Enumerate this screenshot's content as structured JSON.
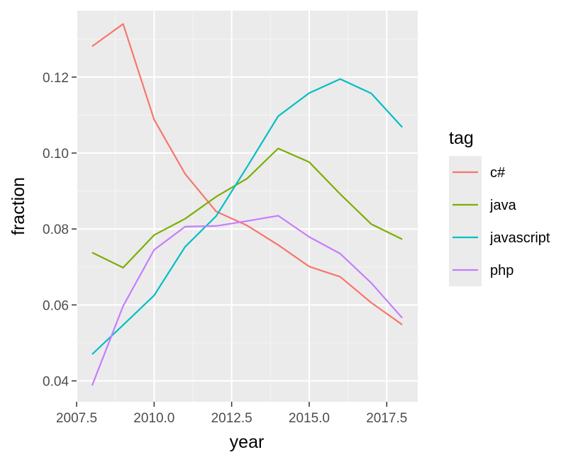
{
  "chart_data": {
    "type": "line",
    "title": "",
    "xlabel": "year",
    "ylabel": "fraction",
    "xlim": [
      2007.5,
      2018.5
    ],
    "ylim": [
      0.0345,
      0.1375
    ],
    "x_ticks": [
      2007.5,
      2010.0,
      2012.5,
      2015.0,
      2017.5
    ],
    "x_tick_labels": [
      "2007.5",
      "2010.0",
      "2012.5",
      "2015.0",
      "2017.5"
    ],
    "y_ticks": [
      0.04,
      0.06,
      0.08,
      0.1,
      0.12
    ],
    "y_tick_labels": [
      "0.04",
      "0.06",
      "0.08",
      "0.10",
      "0.12"
    ],
    "grid": true,
    "legend_placement": "right",
    "legend_title": "tag",
    "x": [
      2008,
      2009,
      2010,
      2011,
      2012,
      2013,
      2014,
      2015,
      2016,
      2017,
      2018
    ],
    "series": [
      {
        "name": "c#",
        "color": "#F8766D",
        "values": [
          0.1281,
          0.134,
          0.1088,
          0.0945,
          0.0846,
          0.0809,
          0.0758,
          0.0701,
          0.0674,
          0.0606,
          0.0548
        ]
      },
      {
        "name": "java",
        "color": "#7CAE00",
        "values": [
          0.0738,
          0.0698,
          0.0784,
          0.0827,
          0.0885,
          0.0933,
          0.1012,
          0.0976,
          0.0892,
          0.0813,
          0.0773
        ]
      },
      {
        "name": "javascript",
        "color": "#00BFC4",
        "values": [
          0.047,
          0.0547,
          0.0625,
          0.0753,
          0.0834,
          0.0964,
          0.1097,
          0.1158,
          0.1195,
          0.1157,
          0.1068
        ]
      },
      {
        "name": "php",
        "color": "#C77CFF",
        "values": [
          0.0388,
          0.0597,
          0.0745,
          0.0806,
          0.0808,
          0.0821,
          0.0835,
          0.0779,
          0.0735,
          0.0658,
          0.0566
        ]
      }
    ]
  }
}
